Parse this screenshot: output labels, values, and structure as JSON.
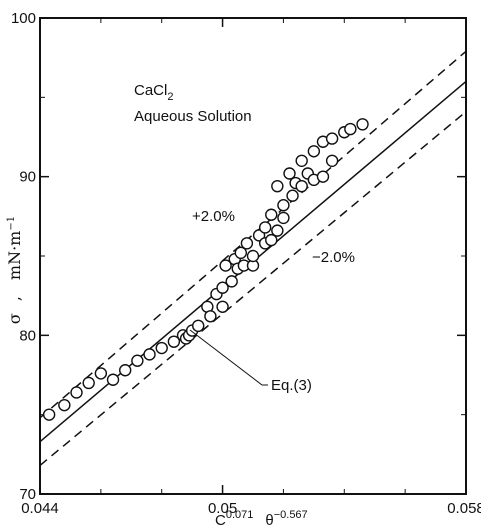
{
  "chart_data": {
    "type": "scatter",
    "xlim": [
      0.044,
      0.058
    ],
    "ylim": [
      70,
      100
    ],
    "x_ticks": [
      0.044,
      0.05,
      0.058
    ],
    "x_tick_labels": [
      "0.044",
      "0.05",
      "0.058"
    ],
    "y_ticks": [
      70,
      80,
      90,
      100
    ],
    "y_tick_labels": [
      "70",
      "80",
      "90",
      "100"
    ],
    "x_minor_ticks": [
      0.046,
      0.048,
      0.052,
      0.054,
      0.056
    ],
    "y_minor_ticks": [
      75,
      85,
      95
    ],
    "xlabel": {
      "base1": "C",
      "exp1": "0.071",
      "base2": "θ",
      "exp2": "−0.567"
    },
    "ylabel": {
      "symbol": "σ",
      "sep": ",",
      "unit": "mN·m",
      "unit_exp": "−1"
    },
    "annotations": {
      "title_line1_main": "CaCl",
      "title_line1_sub": "2",
      "title_line2": "Aqueous Solution",
      "upper_band": "+2.0%",
      "lower_band": "−2.0%",
      "equation": "Eq.(3)"
    },
    "series": [
      {
        "style": "open-circle",
        "x": [
          0.0443,
          0.0448,
          0.0452,
          0.0456,
          0.046,
          0.0464,
          0.0468,
          0.0472,
          0.0476,
          0.048,
          0.0484,
          0.0487,
          0.0488,
          0.0489,
          0.049,
          0.0492,
          0.0495,
          0.0496,
          0.0498,
          0.05,
          0.05,
          0.0501,
          0.0503,
          0.0504,
          0.0505,
          0.0506,
          0.0507,
          0.0508,
          0.051,
          0.051,
          0.0512,
          0.0514,
          0.0514,
          0.0516,
          0.0516,
          0.0518,
          0.0518,
          0.052,
          0.052,
          0.0522,
          0.0523,
          0.0524,
          0.0526,
          0.0526,
          0.0528,
          0.053,
          0.053,
          0.0533,
          0.0533,
          0.0536,
          0.0536,
          0.054,
          0.0542,
          0.0546
        ],
        "y": [
          75.0,
          75.6,
          76.4,
          77.0,
          77.6,
          77.2,
          77.8,
          78.4,
          78.8,
          79.2,
          79.6,
          80.0,
          79.8,
          80.0,
          80.3,
          80.6,
          81.8,
          81.2,
          82.6,
          81.8,
          83.0,
          84.4,
          83.4,
          84.8,
          84.2,
          85.2,
          84.4,
          85.8,
          84.4,
          85.0,
          86.3,
          85.8,
          86.8,
          86.0,
          87.6,
          86.6,
          89.4,
          87.4,
          88.2,
          90.2,
          88.8,
          89.6,
          89.4,
          91.0,
          90.2,
          89.8,
          91.6,
          90.0,
          92.2,
          92.4,
          91.0,
          92.8,
          93.0,
          93.3
        ]
      }
    ],
    "lines": [
      {
        "role": "eq3",
        "style": "solid",
        "x": [
          0.044,
          0.058
        ],
        "y": [
          73.3,
          96.0
        ]
      },
      {
        "role": "plus-2pct",
        "style": "dashed",
        "x": [
          0.044,
          0.058
        ],
        "y": [
          74.8,
          97.9
        ]
      },
      {
        "role": "minus-2pct",
        "style": "dashed",
        "x": [
          0.044,
          0.058
        ],
        "y": [
          71.8,
          94.1
        ]
      }
    ],
    "grid": false,
    "legend": "none"
  }
}
